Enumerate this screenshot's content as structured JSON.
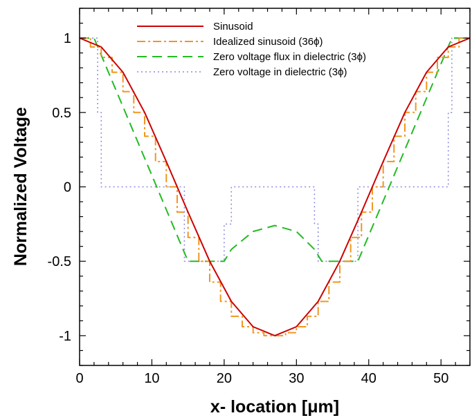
{
  "chart_data": {
    "type": "line",
    "xlabel": "x- location [μm]",
    "ylabel": "Normalized Voltage",
    "xlim": [
      0,
      54
    ],
    "ylim": [
      -1.2,
      1.2
    ],
    "xticks": [
      0,
      10,
      20,
      30,
      40,
      50
    ],
    "yticks": [
      -1,
      -0.5,
      0,
      0.5,
      1
    ],
    "ytick_labels": [
      "-1",
      "-0.5",
      "0",
      "0.5",
      "1"
    ],
    "legend_position": "top",
    "grid": false,
    "series": [
      {
        "name": "Sinusoid",
        "color": "#cc0000",
        "style": "solid",
        "x": [
          0,
          3,
          6,
          9,
          12,
          15,
          18,
          21,
          24,
          27,
          30,
          33,
          36,
          39,
          42,
          45,
          48,
          51,
          54
        ],
        "y": [
          1.0,
          0.94,
          0.77,
          0.5,
          0.17,
          -0.17,
          -0.5,
          -0.77,
          -0.94,
          -1.0,
          -0.94,
          -0.77,
          -0.5,
          -0.17,
          0.17,
          0.5,
          0.77,
          0.94,
          1.0
        ]
      },
      {
        "name": "Idealized sinusoid (36ϕ)",
        "color": "#f0961e",
        "style": "dashdot",
        "x": [
          0,
          1.5,
          1.5,
          3,
          3,
          4.5,
          4.5,
          6,
          6,
          7.5,
          7.5,
          9,
          9,
          10.5,
          10.5,
          12,
          12,
          13.5,
          13.5,
          15,
          15,
          16.5,
          16.5,
          18,
          18,
          19.5,
          19.5,
          21,
          21,
          22.5,
          22.5,
          24,
          24,
          25.5,
          25.5,
          27,
          27,
          28.5,
          28.5,
          30,
          30,
          31.5,
          31.5,
          33,
          33,
          34.5,
          34.5,
          36,
          36,
          37.5,
          37.5,
          39,
          39,
          40.5,
          40.5,
          42,
          42,
          43.5,
          43.5,
          45,
          45,
          46.5,
          46.5,
          48,
          48,
          49.5,
          49.5,
          51,
          51,
          52.5,
          52.5,
          54
        ],
        "y": [
          1.0,
          1.0,
          0.94,
          0.94,
          0.87,
          0.87,
          0.77,
          0.77,
          0.64,
          0.64,
          0.5,
          0.5,
          0.34,
          0.34,
          0.17,
          0.17,
          0.0,
          0.0,
          -0.17,
          -0.17,
          -0.34,
          -0.34,
          -0.5,
          -0.5,
          -0.64,
          -0.64,
          -0.77,
          -0.77,
          -0.87,
          -0.87,
          -0.94,
          -0.94,
          -0.98,
          -0.98,
          -1.0,
          -1.0,
          -1.0,
          -1.0,
          -0.98,
          -0.98,
          -0.94,
          -0.94,
          -0.87,
          -0.87,
          -0.77,
          -0.77,
          -0.64,
          -0.64,
          -0.5,
          -0.5,
          -0.34,
          -0.34,
          -0.17,
          -0.17,
          0.0,
          0.0,
          0.17,
          0.17,
          0.34,
          0.34,
          0.5,
          0.5,
          0.64,
          0.64,
          0.77,
          0.77,
          0.87,
          0.87,
          0.94,
          0.94,
          1.0,
          1.0
        ]
      },
      {
        "name": "Zero voltage flux in dielectric (3ϕ)",
        "color": "#22bb22",
        "style": "longdash",
        "x": [
          0,
          2,
          15,
          20,
          21,
          24,
          27,
          30,
          32.5,
          33.5,
          38.5,
          51.5,
          54
        ],
        "y": [
          1.0,
          1.0,
          -0.5,
          -0.5,
          -0.42,
          -0.3,
          -0.26,
          -0.3,
          -0.42,
          -0.5,
          -0.5,
          1.0,
          1.0
        ]
      },
      {
        "name": "Zero voltage in dielectric (3ϕ)",
        "color": "#8888dd",
        "style": "dotted",
        "x": [
          0,
          2.5,
          2.5,
          3,
          3,
          14.5,
          14.5,
          20,
          20,
          21,
          21,
          32.5,
          32.5,
          33,
          33,
          38.5,
          38.5,
          51,
          51,
          51.5,
          51.5,
          54
        ],
        "y": [
          1.0,
          1.0,
          0.5,
          0.5,
          0.0,
          0.0,
          -0.5,
          -0.5,
          -0.25,
          -0.25,
          0.0,
          0.0,
          -0.25,
          -0.25,
          -0.5,
          -0.5,
          0.0,
          0.0,
          0.5,
          0.5,
          1.0,
          1.0
        ]
      }
    ]
  }
}
